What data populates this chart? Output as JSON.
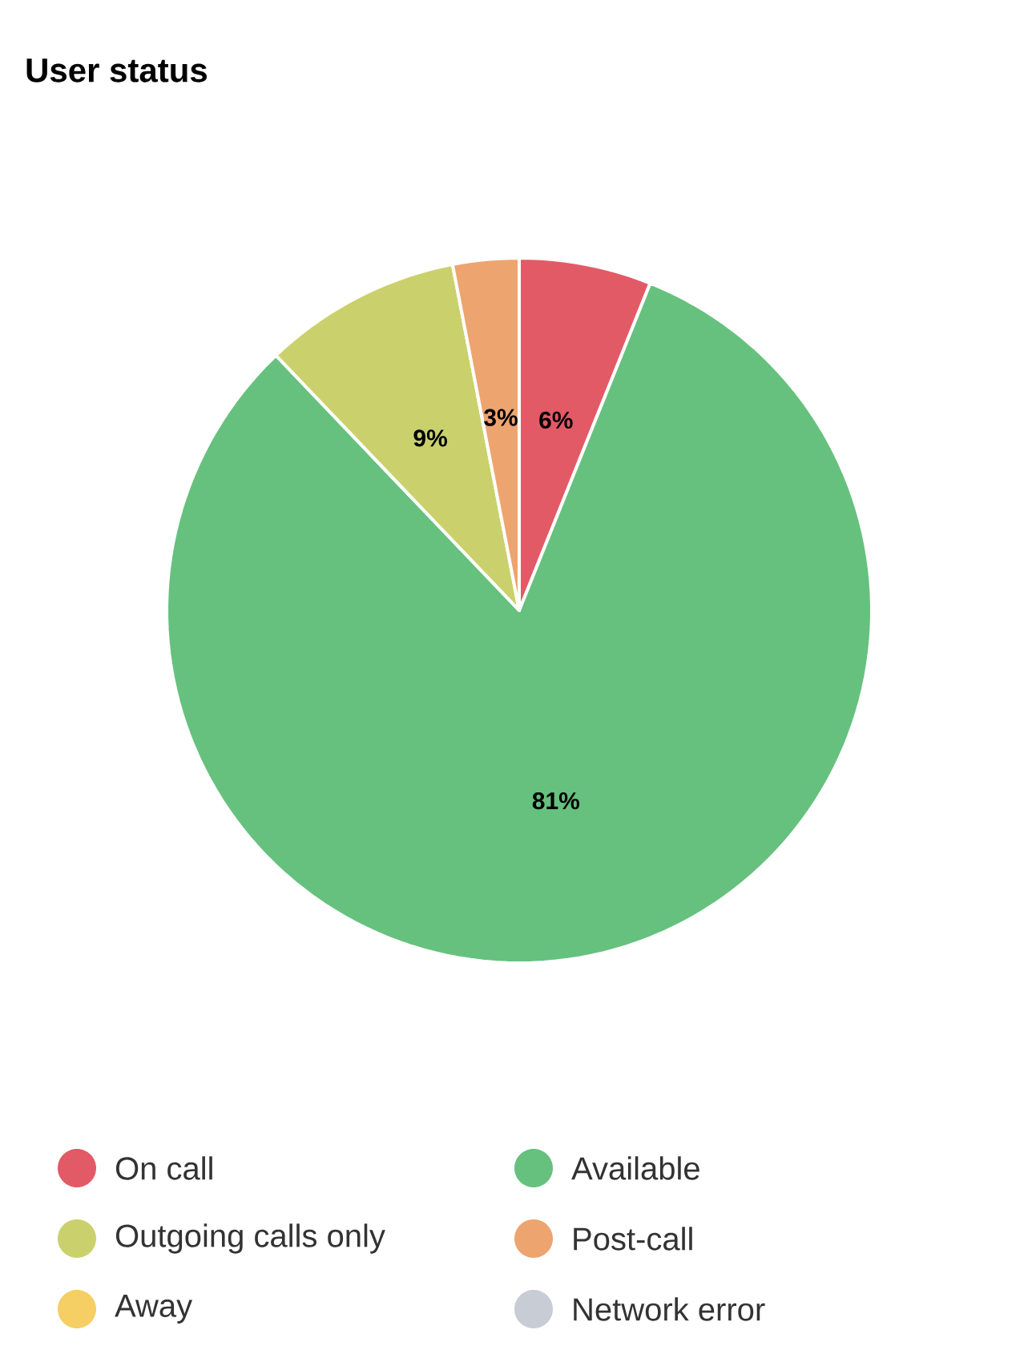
{
  "chart_data": {
    "type": "pie",
    "title": "User status",
    "categories": [
      "On call",
      "Available",
      "Outgoing calls only",
      "Post-call",
      "Away",
      "Network error"
    ],
    "values": [
      6,
      81,
      9,
      3,
      0,
      0
    ],
    "value_labels": [
      "6%",
      "81%",
      "9%",
      "3%",
      null,
      null
    ],
    "colors": [
      "#e35a67",
      "#66c17e",
      "#cad16c",
      "#eea46f",
      "#f5cf63",
      "#c8ccd4"
    ],
    "legend": "bottom"
  }
}
